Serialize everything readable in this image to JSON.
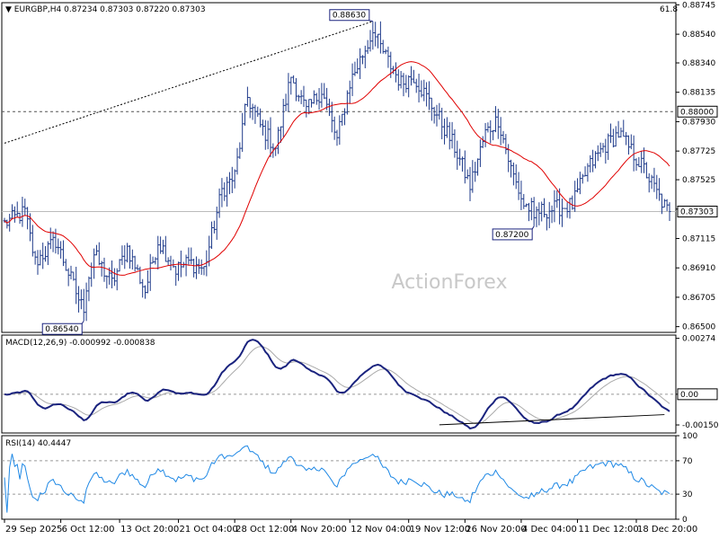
{
  "chart_data": [
    {
      "type": "candlestick",
      "header": {
        "title": "EURGBP,H4",
        "ohlc": "0.87234 0.87303 0.87220 0.87303",
        "fib_label": "61.8"
      },
      "watermark": "ActionForex",
      "ylim": [
        0.8646,
        0.8876
      ],
      "y_ticks": [
        "0.88745",
        "0.88540",
        "0.88340",
        "0.88135",
        "0.87930",
        "0.87725",
        "0.87525",
        "0.87320",
        "0.87115",
        "0.86910",
        "0.86705",
        "0.86500"
      ],
      "current_price": "0.87303",
      "reference_level": "0.88000",
      "annotations": [
        {
          "label": "0.88630",
          "bar": 144,
          "value": 0.8863
        },
        {
          "label": "0.87200",
          "bar": 207,
          "value": 0.872
        },
        {
          "label": "0.86540",
          "bar": 31,
          "value": 0.8654
        }
      ],
      "trendline": {
        "from": {
          "bar": 0,
          "value": 0.8778
        },
        "to": {
          "bar": 144,
          "value": 0.8863
        }
      },
      "anchors": [
        [
          0,
          0.8722
        ],
        [
          8,
          0.873
        ],
        [
          12,
          0.8695
        ],
        [
          20,
          0.871
        ],
        [
          30,
          0.8665
        ],
        [
          35,
          0.87
        ],
        [
          42,
          0.868
        ],
        [
          48,
          0.8705
        ],
        [
          55,
          0.8675
        ],
        [
          60,
          0.871
        ],
        [
          67,
          0.869
        ],
        [
          72,
          0.8695
        ],
        [
          78,
          0.869
        ],
        [
          85,
          0.8745
        ],
        [
          90,
          0.8755
        ],
        [
          95,
          0.881
        ],
        [
          100,
          0.879
        ],
        [
          106,
          0.8775
        ],
        [
          112,
          0.8825
        ],
        [
          118,
          0.88
        ],
        [
          124,
          0.8815
        ],
        [
          130,
          0.878
        ],
        [
          135,
          0.882
        ],
        [
          140,
          0.884
        ],
        [
          144,
          0.8855
        ],
        [
          150,
          0.8835
        ],
        [
          155,
          0.882
        ],
        [
          160,
          0.8825
        ],
        [
          165,
          0.881
        ],
        [
          170,
          0.8795
        ],
        [
          176,
          0.8775
        ],
        [
          182,
          0.8748
        ],
        [
          188,
          0.8785
        ],
        [
          193,
          0.8795
        ],
        [
          198,
          0.876
        ],
        [
          203,
          0.8735
        ],
        [
          208,
          0.873
        ],
        [
          214,
          0.8732
        ],
        [
          222,
          0.8735
        ],
        [
          228,
          0.876
        ],
        [
          234,
          0.8775
        ],
        [
          240,
          0.8785
        ],
        [
          246,
          0.877
        ],
        [
          250,
          0.876
        ],
        [
          256,
          0.874
        ],
        [
          260,
          0.8728
        ]
      ],
      "n_bars": 261,
      "moving_average": {
        "period": 24,
        "color": "#e00000"
      },
      "candle_color": "#1e3a8a"
    },
    {
      "type": "line",
      "title": "MACD(12,26,9) -0.000992 -0.000838",
      "ylim": [
        -0.0019,
        0.0029
      ],
      "y_ticks": [
        "0.00274",
        "0.00",
        "-0.001505"
      ],
      "zero_label": "0.00",
      "series": [
        {
          "values": "macd_from_price",
          "color": "#1a237e",
          "role": "macd"
        },
        {
          "values": "signal_from_macd",
          "color": "#aaaaaa",
          "role": "signal"
        }
      ],
      "divergence_line": {
        "from": {
          "bar": 170,
          "value": -0.0015
        },
        "to": {
          "bar": 258,
          "value": -0.001
        }
      }
    },
    {
      "type": "line",
      "title": "RSI(14) 40.4447",
      "ylim": [
        0,
        100
      ],
      "y_ticks": [
        "100",
        "70",
        "30",
        "0"
      ],
      "levels": [
        70,
        30
      ],
      "series": [
        {
          "values": "rsi_from_price",
          "color": "#1e88e5"
        }
      ]
    }
  ],
  "x_axis": {
    "labels": [
      {
        "text": "29 Sep 2025",
        "bar": 0
      },
      {
        "text": "6 Oct 12:00",
        "bar": 22
      },
      {
        "text": "13 Oct 20:00",
        "bar": 45
      },
      {
        "text": "21 Oct 04:00",
        "bar": 68
      },
      {
        "text": "28 Oct 12:00",
        "bar": 90
      },
      {
        "text": "4 Nov 20:00",
        "bar": 112
      },
      {
        "text": "12 Nov 04:00",
        "bar": 135
      },
      {
        "text": "19 Nov 12:00",
        "bar": 158
      },
      {
        "text": "26 Nov 20:00",
        "bar": 180
      },
      {
        "text": "4 Dec 04:00",
        "bar": 202
      },
      {
        "text": "11 Dec 12:00",
        "bar": 224
      },
      {
        "text": "18 Dec 20:00",
        "bar": 247
      }
    ]
  }
}
